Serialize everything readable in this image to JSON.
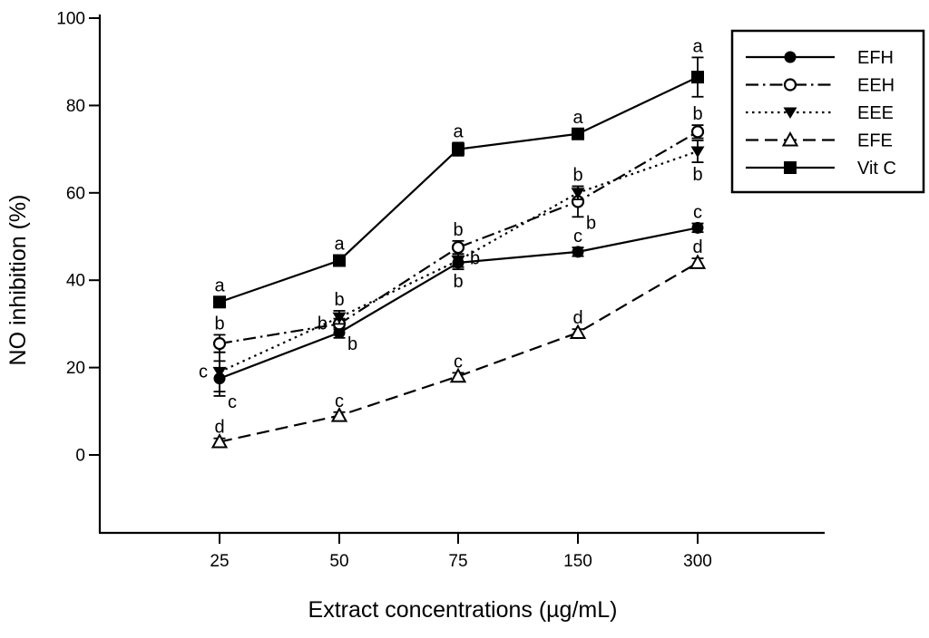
{
  "figure": {
    "background_color": "#ffffff",
    "line_color": "#000000",
    "text_color": "#000000"
  },
  "chart_data": {
    "type": "line",
    "title": "",
    "xlabel": "Extract concentrations (µg/mL)",
    "ylabel": "NO inhibition (%)",
    "x_categories": [
      "25",
      "50",
      "75",
      "150",
      "300"
    ],
    "ylim": [
      0,
      100
    ],
    "yticks": [
      0,
      20,
      40,
      60,
      80,
      100
    ],
    "grid": false,
    "legend": {
      "position": "upper-right"
    },
    "series": [
      {
        "name": "EFH",
        "marker": "filled-circle",
        "line_style": "solid",
        "values": [
          17.5,
          28,
          44,
          46.5,
          52
        ],
        "errors": [
          4,
          1.2,
          1.5,
          1,
          1
        ],
        "sig_letters": [
          "c",
          "b",
          "b",
          "c",
          "c"
        ],
        "sig_letter_pos": [
          "belowright",
          "belowright",
          "below",
          "above",
          "above"
        ]
      },
      {
        "name": "EEH",
        "marker": "open-circle",
        "line_style": "dashdot",
        "values": [
          25.5,
          30,
          47.5,
          58,
          74
        ],
        "errors": [
          2,
          1.2,
          1.5,
          3.5,
          1.5
        ],
        "sig_letters": [
          "b",
          "b",
          "b",
          "b",
          "b"
        ],
        "sig_letter_pos": [
          "above",
          "left",
          "above",
          "belowright",
          "above"
        ]
      },
      {
        "name": "EEE",
        "marker": "filled-triangle-down",
        "line_style": "dotted",
        "values": [
          19,
          31.5,
          44.5,
          60,
          69.5
        ],
        "errors": [
          4.5,
          1.5,
          1.5,
          1.5,
          2.5
        ],
        "sig_letters": [
          "c",
          "b",
          "b",
          "b",
          "b"
        ],
        "sig_letter_pos": [
          "left",
          "above",
          "right",
          "above",
          "below"
        ]
      },
      {
        "name": "EFE",
        "marker": "open-triangle-up",
        "line_style": "dashed",
        "values": [
          3,
          9,
          18,
          28,
          44
        ],
        "errors": [
          0.8,
          0.8,
          0.8,
          0.8,
          1
        ],
        "sig_letters": [
          "d",
          "c",
          "c",
          "d",
          "d"
        ],
        "sig_letter_pos": [
          "above",
          "above",
          "above",
          "above",
          "above"
        ]
      },
      {
        "name": "Vit C",
        "marker": "filled-square",
        "line_style": "solid",
        "values": [
          35,
          44.5,
          70,
          73.5,
          86.5
        ],
        "errors": [
          1.2,
          1.2,
          1.5,
          1.2,
          4.5
        ],
        "sig_letters": [
          "a",
          "a",
          "a",
          "a",
          "a"
        ],
        "sig_letter_pos": [
          "above",
          "above",
          "above",
          "above",
          "above"
        ]
      }
    ]
  }
}
